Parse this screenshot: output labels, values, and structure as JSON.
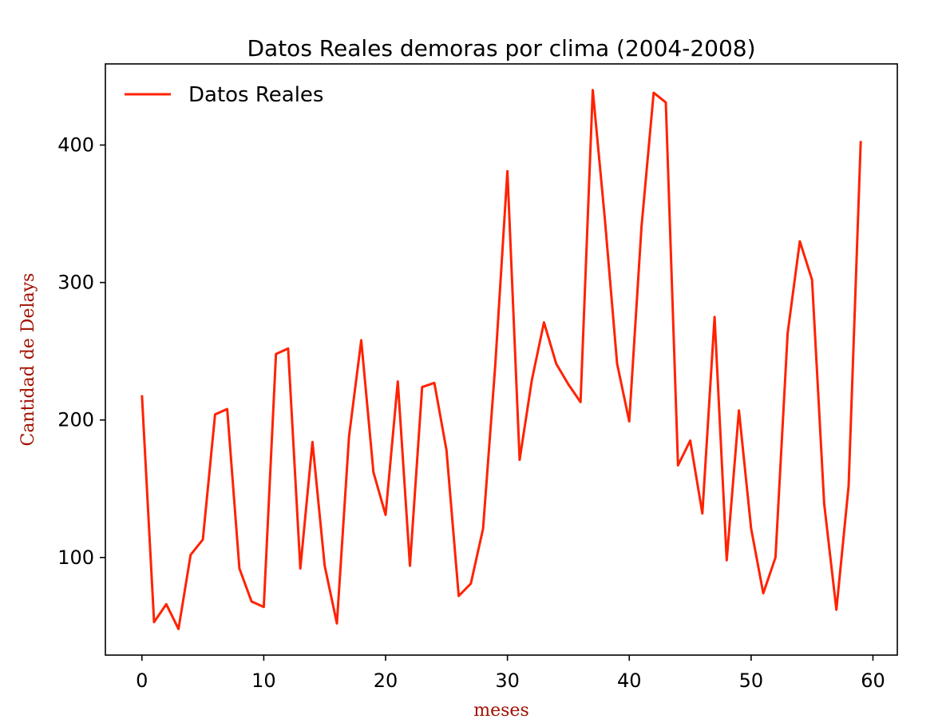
{
  "chart_data": {
    "type": "line",
    "title": "Datos Reales demoras por clima (2004-2008)",
    "xlabel": "meses",
    "ylabel": "Cantidad de Delays",
    "xlim": [
      -3,
      62
    ],
    "ylim": [
      29,
      459
    ],
    "xticks": [
      0,
      10,
      20,
      30,
      40,
      50,
      60
    ],
    "yticks": [
      100,
      200,
      300,
      400
    ],
    "grid": false,
    "legend_position": "upper-left",
    "axis_label_color": "#a01000",
    "series": [
      {
        "name": "Datos Reales",
        "color": "#ff2200",
        "x": [
          0,
          1,
          2,
          3,
          4,
          5,
          6,
          7,
          8,
          9,
          10,
          11,
          12,
          13,
          14,
          15,
          16,
          17,
          18,
          19,
          20,
          21,
          22,
          23,
          24,
          25,
          26,
          27,
          28,
          29,
          30,
          31,
          32,
          33,
          34,
          35,
          36,
          37,
          38,
          39,
          40,
          41,
          42,
          43,
          44,
          45,
          46,
          47,
          48,
          49,
          50,
          51,
          52,
          53,
          54,
          55,
          56,
          57,
          58,
          59
        ],
        "values": [
          218,
          53,
          66,
          48,
          102,
          113,
          204,
          208,
          92,
          68,
          64,
          248,
          252,
          92,
          184,
          94,
          52,
          188,
          258,
          162,
          131,
          228,
          94,
          224,
          227,
          178,
          72,
          81,
          121,
          240,
          381,
          171,
          229,
          271,
          241,
          226,
          213,
          440,
          346,
          241,
          199,
          340,
          438,
          431,
          167,
          185,
          132,
          275,
          98,
          207,
          121,
          74,
          100,
          263,
          330,
          302,
          139,
          62,
          152,
          403
        ]
      }
    ]
  }
}
